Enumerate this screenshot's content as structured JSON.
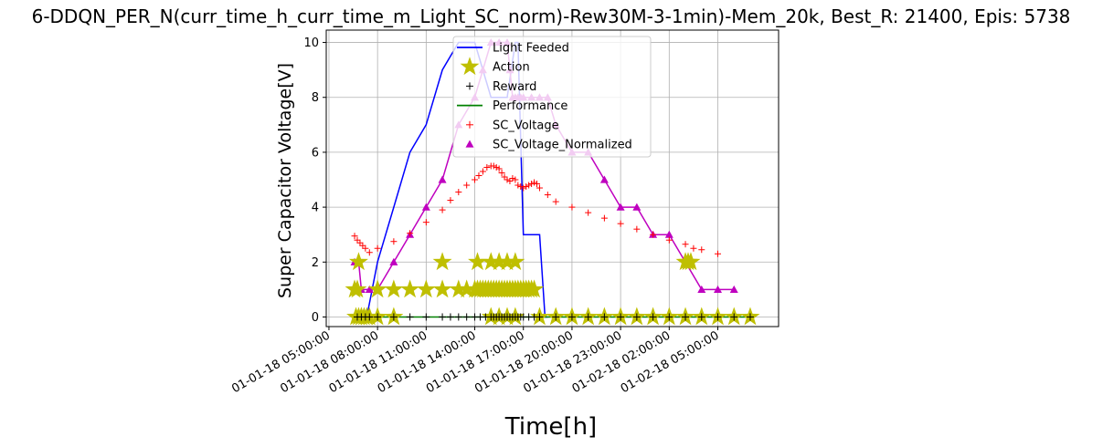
{
  "chart_data": {
    "type": "line",
    "title": "6-DDQN_PER_N(curr_time_h_curr_time_m_Light_SC_norm)-Rew30M-3-1min)-Mem_20k, Best_R: 21400, Epis: 5738",
    "xlabel": "Time[h]",
    "ylabel": "Super Capacitor Voltage[V]",
    "xlim": [
      "01-01-18 04:50:00",
      "01-02-18 08:45:00"
    ],
    "ylim": [
      -0.35,
      10.45
    ],
    "x_ticks": [
      "01-01-18 05:00:00",
      "01-01-18 08:00:00",
      "01-01-18 11:00:00",
      "01-01-18 14:00:00",
      "01-01-18 17:00:00",
      "01-01-18 20:00:00",
      "01-01-18 23:00:00",
      "01-02-18 02:00:00",
      "01-02-18 05:00:00"
    ],
    "y_ticks": [
      "0",
      "2",
      "4",
      "6",
      "8",
      "10"
    ],
    "grid": true,
    "legend_position": "upper-center",
    "legend": [
      "Light Feeded",
      "Action",
      "Reward",
      "Performance",
      "SC_Voltage",
      "SC_Voltage_Normalized"
    ],
    "colors": {
      "light": "#0000ff",
      "action": "#bfbf00",
      "reward": "#000000",
      "performance": "#008000",
      "sc_voltage": "#ff0000",
      "sc_norm": "#bf00bf"
    },
    "series": [
      {
        "name": "Light Feeded",
        "style": "line",
        "x": [
          "01-01-18 06:40",
          "01-01-18 06:50",
          "01-01-18 07:00",
          "01-01-18 07:10",
          "01-01-18 07:20",
          "01-01-18 07:30",
          "01-01-18 08:00",
          "01-01-18 09:00",
          "01-01-18 10:00",
          "01-01-18 11:00",
          "01-01-18 12:00",
          "01-01-18 13:00",
          "01-01-18 14:00",
          "01-01-18 15:00",
          "01-01-18 16:00",
          "01-01-18 16:30",
          "01-01-18 16:40",
          "01-01-18 17:00",
          "01-01-18 18:00",
          "01-01-18 18:20",
          "01-01-18 18:30"
        ],
        "y": [
          0,
          0,
          0,
          0,
          0,
          0.5,
          2,
          4,
          6,
          7,
          9,
          10,
          10,
          8,
          8,
          10,
          10,
          3,
          3,
          0,
          0
        ]
      },
      {
        "name": "Action",
        "style": "markers",
        "x": [
          "01-01-18 06:35",
          "01-01-18 06:45",
          "01-01-18 06:50",
          "01-01-18 07:00",
          "01-01-18 07:10",
          "01-01-18 07:30",
          "01-01-18 08:00",
          "01-01-18 09:00",
          "01-01-18 10:00",
          "01-01-18 11:00",
          "01-01-18 12:00",
          "01-01-18 13:00",
          "01-01-18 13:30",
          "01-01-18 14:00",
          "01-01-18 14:10",
          "01-01-18 14:20",
          "01-01-18 14:30",
          "01-01-18 14:40",
          "01-01-18 14:50",
          "01-01-18 15:00",
          "01-01-18 15:10",
          "01-01-18 15:20",
          "01-01-18 15:30",
          "01-01-18 15:40",
          "01-01-18 15:50",
          "01-01-18 16:00",
          "01-01-18 16:10",
          "01-01-18 16:20",
          "01-01-18 16:30",
          "01-01-18 16:40",
          "01-01-18 16:50",
          "01-01-18 17:00",
          "01-01-18 17:10",
          "01-01-18 17:20",
          "01-01-18 17:30",
          "01-01-18 17:40",
          "01-01-18 18:00",
          "01-01-18 19:00",
          "01-01-18 20:00",
          "01-01-18 21:00",
          "01-01-18 22:00",
          "01-01-18 23:00",
          "01-02-18 00:00",
          "01-02-18 01:00",
          "01-02-18 02:00",
          "01-02-18 03:00",
          "01-02-18 04:00",
          "01-02-18 05:00",
          "01-02-18 06:00",
          "01-02-18 07:00",
          "01-01-18 06:40",
          "01-01-18 06:50",
          "01-01-18 07:00",
          "01-01-18 07:20",
          "01-01-18 08:00",
          "01-01-18 09:00",
          "01-01-18 12:00",
          "01-01-18 14:10",
          "01-01-18 15:00",
          "01-01-18 15:30",
          "01-01-18 16:00",
          "01-01-18 16:30",
          "01-02-18 03:00",
          "01-02-18 03:10",
          "01-02-18 03:20",
          "01-01-18 15:00",
          "01-01-18 15:30",
          "01-01-18 16:00",
          "01-01-18 16:30"
        ],
        "y": [
          1,
          1,
          2,
          0,
          0,
          0,
          1,
          1,
          1,
          1,
          1,
          1,
          1,
          1,
          1,
          1,
          1,
          1,
          1,
          1,
          1,
          1,
          1,
          1,
          1,
          1,
          1,
          1,
          1,
          1,
          1,
          1,
          1,
          1,
          1,
          1,
          0,
          0,
          0,
          0,
          0,
          0,
          0,
          0,
          0,
          0,
          0,
          0,
          0,
          0,
          0,
          0,
          0,
          0,
          0,
          0,
          2,
          2,
          2,
          2,
          2,
          2,
          2,
          2,
          2,
          0,
          0,
          0,
          0
        ]
      },
      {
        "name": "Reward",
        "style": "markers",
        "x": [
          "01-01-18 06:45",
          "01-01-18 07:00",
          "01-01-18 07:15",
          "01-01-18 07:30",
          "01-01-18 08:00",
          "01-01-18 09:00",
          "01-01-18 10:00",
          "01-01-18 11:00",
          "01-01-18 12:00",
          "01-01-18 12:30",
          "01-01-18 13:00",
          "01-01-18 13:30",
          "01-01-18 14:00",
          "01-01-18 14:20",
          "01-01-18 14:40",
          "01-01-18 15:00",
          "01-01-18 15:10",
          "01-01-18 15:20",
          "01-01-18 15:30",
          "01-01-18 15:40",
          "01-01-18 15:50",
          "01-01-18 16:00",
          "01-01-18 16:10",
          "01-01-18 16:20",
          "01-01-18 16:30",
          "01-01-18 16:40",
          "01-01-18 16:50",
          "01-01-18 17:00",
          "01-01-18 17:20",
          "01-01-18 17:40",
          "01-01-18 18:00",
          "01-01-18 19:00",
          "01-01-18 20:00",
          "01-01-18 21:00",
          "01-01-18 22:00",
          "01-01-18 23:00",
          "01-02-18 00:00",
          "01-02-18 01:00",
          "01-02-18 02:00",
          "01-02-18 03:00",
          "01-02-18 04:00",
          "01-02-18 05:00",
          "01-02-18 06:00",
          "01-02-18 07:00"
        ],
        "y": [
          0,
          0,
          0,
          0,
          0,
          0,
          0,
          0,
          0,
          0,
          0,
          0,
          0,
          0,
          0,
          0,
          0,
          0,
          0,
          0,
          0,
          0,
          0,
          0,
          0,
          0,
          0,
          0,
          0,
          0,
          0,
          0,
          0,
          0,
          0,
          0,
          0,
          0,
          0,
          0,
          0,
          0,
          0,
          0
        ]
      },
      {
        "name": "Performance",
        "style": "line",
        "x": [
          "01-01-18 06:35",
          "01-02-18 07:00"
        ],
        "y": [
          0,
          0
        ]
      },
      {
        "name": "SC_Voltage",
        "style": "markers",
        "x": [
          "01-01-18 06:35",
          "01-01-18 06:45",
          "01-01-18 06:55",
          "01-01-18 07:05",
          "01-01-18 07:15",
          "01-01-18 07:30",
          "01-01-18 08:00",
          "01-01-18 09:00",
          "01-01-18 10:00",
          "01-01-18 11:00",
          "01-01-18 12:00",
          "01-01-18 12:30",
          "01-01-18 13:00",
          "01-01-18 13:30",
          "01-01-18 14:00",
          "01-01-18 14:15",
          "01-01-18 14:30",
          "01-01-18 14:45",
          "01-01-18 15:00",
          "01-01-18 15:10",
          "01-01-18 15:20",
          "01-01-18 15:30",
          "01-01-18 15:40",
          "01-01-18 15:50",
          "01-01-18 16:00",
          "01-01-18 16:10",
          "01-01-18 16:20",
          "01-01-18 16:30",
          "01-01-18 16:40",
          "01-01-18 16:50",
          "01-01-18 17:00",
          "01-01-18 17:10",
          "01-01-18 17:20",
          "01-01-18 17:30",
          "01-01-18 17:40",
          "01-01-18 17:50",
          "01-01-18 18:00",
          "01-01-18 18:30",
          "01-01-18 19:00",
          "01-01-18 20:00",
          "01-01-18 21:00",
          "01-01-18 22:00",
          "01-01-18 23:00",
          "01-02-18 00:00",
          "01-02-18 01:00",
          "01-02-18 02:00",
          "01-02-18 03:00",
          "01-02-18 03:30",
          "01-02-18 04:00",
          "01-02-18 05:00"
        ],
        "y": [
          2.95,
          2.8,
          2.7,
          2.6,
          2.5,
          2.35,
          2.5,
          2.75,
          3.05,
          3.45,
          3.9,
          4.25,
          4.55,
          4.8,
          5.0,
          5.15,
          5.3,
          5.45,
          5.5,
          5.5,
          5.45,
          5.4,
          5.25,
          5.1,
          5.0,
          4.95,
          5.05,
          5.0,
          4.8,
          4.75,
          4.7,
          4.75,
          4.8,
          4.85,
          4.9,
          4.85,
          4.7,
          4.45,
          4.2,
          4.0,
          3.8,
          3.6,
          3.4,
          3.2,
          3.0,
          2.8,
          2.65,
          2.5,
          2.45,
          2.3
        ]
      },
      {
        "name": "SC_Voltage_Normalized",
        "style": "line-markers",
        "x": [
          "01-01-18 06:35",
          "01-01-18 06:50",
          "01-01-18 07:00",
          "01-01-18 07:30",
          "01-01-18 08:00",
          "01-01-18 09:00",
          "01-01-18 10:00",
          "01-01-18 11:00",
          "01-01-18 12:00",
          "01-01-18 13:00",
          "01-01-18 14:00",
          "01-01-18 14:30",
          "01-01-18 15:00",
          "01-01-18 15:30",
          "01-01-18 16:00",
          "01-01-18 16:10",
          "01-01-18 16:20",
          "01-01-18 16:30",
          "01-01-18 16:40",
          "01-01-18 16:50",
          "01-01-18 17:00",
          "01-01-18 17:30",
          "01-01-18 18:00",
          "01-01-18 18:30",
          "01-01-18 19:00",
          "01-01-18 20:00",
          "01-01-18 21:00",
          "01-01-18 22:00",
          "01-01-18 23:00",
          "01-02-18 00:00",
          "01-02-18 01:00",
          "01-02-18 02:00",
          "01-02-18 03:00",
          "01-02-18 04:00",
          "01-02-18 05:00",
          "01-02-18 06:00"
        ],
        "y": [
          2,
          2,
          1,
          1,
          1,
          2,
          3,
          4,
          5,
          7,
          8,
          9,
          10,
          10,
          10,
          9,
          8,
          8,
          8,
          8,
          8,
          8,
          8,
          8,
          7,
          6,
          6,
          5,
          4,
          4,
          3,
          3,
          2,
          1,
          1,
          1
        ]
      }
    ]
  }
}
